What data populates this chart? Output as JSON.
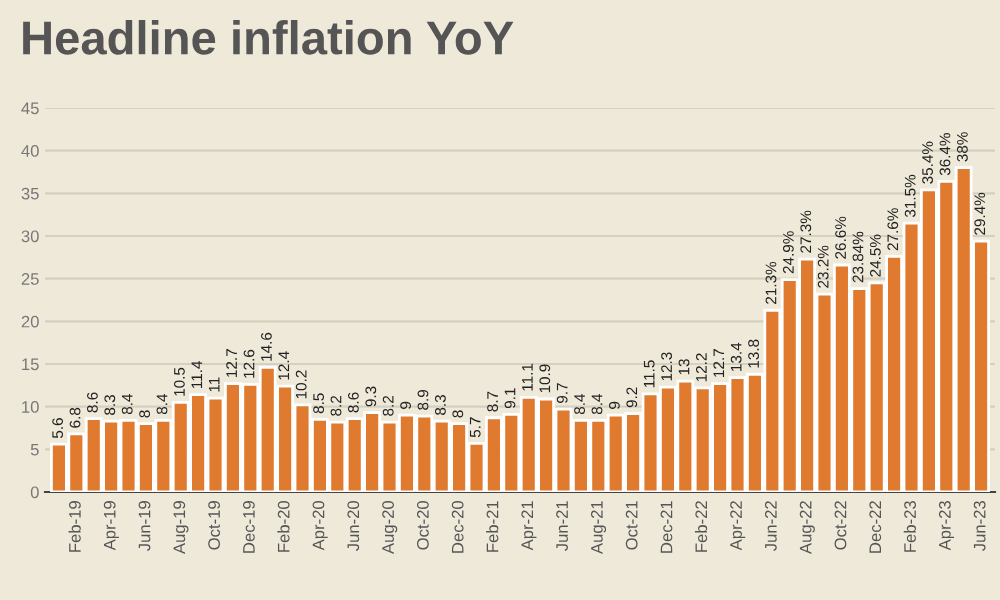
{
  "chart_data": {
    "type": "bar",
    "title": "Headline inflation YoY",
    "categories": [
      null,
      "Feb-19",
      null,
      "Apr-19",
      null,
      "Jun-19",
      null,
      "Aug-19",
      null,
      "Oct-19",
      null,
      "Dec-19",
      null,
      "Feb-20",
      null,
      "Apr-20",
      null,
      "Jun-20",
      null,
      "Aug-20",
      null,
      "Oct-20",
      null,
      "Dec-20",
      null,
      "Feb-21",
      null,
      "Apr-21",
      null,
      "Jun-21",
      null,
      "Aug-21",
      null,
      "Oct-21",
      null,
      "Dec-21",
      null,
      "Feb-22",
      null,
      "Apr-22",
      null,
      "Jun-22",
      null,
      "Aug-22",
      null,
      "Oct-22",
      null,
      "Dec-22",
      null,
      "Feb-23",
      null,
      "Apr-23",
      null,
      "Jun-23"
    ],
    "values": [
      5.6,
      6.8,
      8.6,
      8.3,
      8.4,
      8,
      8.4,
      10.5,
      11.4,
      11,
      12.7,
      12.6,
      14.6,
      12.4,
      10.2,
      8.5,
      8.2,
      8.6,
      9.3,
      8.2,
      9,
      8.9,
      8.3,
      8,
      5.7,
      8.7,
      9.1,
      11.1,
      10.9,
      9.7,
      8.4,
      8.4,
      9,
      9.2,
      11.5,
      12.3,
      13,
      12.2,
      12.7,
      13.4,
      13.8,
      21.3,
      24.9,
      27.3,
      23.2,
      26.6,
      23.84,
      24.5,
      27.6,
      31.5,
      35.4,
      36.4,
      38,
      29.4
    ],
    "value_labels": [
      "5.6",
      "6.8",
      "8.6",
      "8.3",
      "8.4",
      "8",
      "8.4",
      "10.5",
      "11.4",
      "11",
      "12.7",
      "12.6",
      "14.6",
      "12.4",
      "10.2",
      "8.5",
      "8.2",
      "8.6",
      "9.3",
      "8.2",
      "9",
      "8.9",
      "8.3",
      "8",
      "5.7",
      "8.7",
      "9.1",
      "11.1",
      "10.9",
      "9.7",
      "8.4",
      "8.4",
      "9",
      "9.2",
      "11.5",
      "12.3",
      "13",
      "12.2",
      "12.7",
      "13.4",
      "13.8",
      "21.3%",
      "24.9%",
      "27.3%",
      "23.2%",
      "26.6%",
      "23.84%",
      "24.5%",
      "27.6%",
      "31.5%",
      "35.4%",
      "36.4%",
      "38%",
      "29.4%"
    ],
    "color": "#e07a2e",
    "ylim": [
      0,
      45
    ],
    "yticks": [
      0,
      5,
      10,
      15,
      20,
      25,
      30,
      35,
      40,
      45
    ],
    "grid": "y"
  }
}
